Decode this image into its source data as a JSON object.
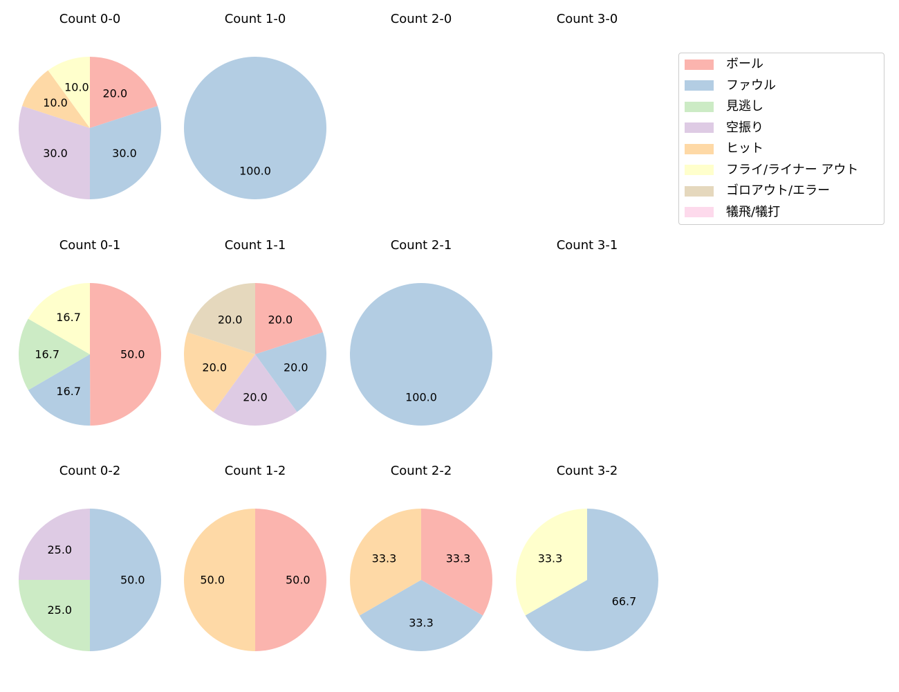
{
  "legend": {
    "items": [
      {
        "label": "ボール",
        "color": "#fbb4ae"
      },
      {
        "label": "ファウル",
        "color": "#b3cde3"
      },
      {
        "label": "見逃し",
        "color": "#ccebc5"
      },
      {
        "label": "空振り",
        "color": "#decbe4"
      },
      {
        "label": "ヒット",
        "color": "#fed9a6"
      },
      {
        "label": "フライ/ライナー アウト",
        "color": "#ffffcc"
      },
      {
        "label": "ゴロアウト/エラー",
        "color": "#e5d8bd"
      },
      {
        "label": "犠飛/犠打",
        "color": "#fddaec"
      }
    ]
  },
  "chart_data": [
    {
      "type": "pie",
      "title": "Count 0-0",
      "categories": [
        "ボール",
        "ファウル",
        "空振り",
        "ヒット",
        "フライ/ライナー アウト"
      ],
      "values": [
        20.0,
        30.0,
        30.0,
        10.0,
        10.0
      ]
    },
    {
      "type": "pie",
      "title": "Count 1-0",
      "categories": [
        "ファウル"
      ],
      "values": [
        100.0
      ]
    },
    {
      "type": "pie",
      "title": "Count 2-0",
      "categories": [],
      "values": []
    },
    {
      "type": "pie",
      "title": "Count 3-0",
      "categories": [],
      "values": []
    },
    {
      "type": "pie",
      "title": "Count 0-1",
      "categories": [
        "ボール",
        "ファウル",
        "見逃し",
        "フライ/ライナー アウト"
      ],
      "values": [
        50.0,
        16.7,
        16.7,
        16.7
      ]
    },
    {
      "type": "pie",
      "title": "Count 1-1",
      "categories": [
        "ボール",
        "ファウル",
        "空振り",
        "ヒット",
        "ゴロアウト/エラー"
      ],
      "values": [
        20.0,
        20.0,
        20.0,
        20.0,
        20.0
      ]
    },
    {
      "type": "pie",
      "title": "Count 2-1",
      "categories": [
        "ファウル"
      ],
      "values": [
        100.0
      ]
    },
    {
      "type": "pie",
      "title": "Count 3-1",
      "categories": [],
      "values": []
    },
    {
      "type": "pie",
      "title": "Count 0-2",
      "categories": [
        "ファウル",
        "見逃し",
        "空振り"
      ],
      "values": [
        50.0,
        25.0,
        25.0
      ]
    },
    {
      "type": "pie",
      "title": "Count 1-2",
      "categories": [
        "ボール",
        "ヒット"
      ],
      "values": [
        50.0,
        50.0
      ]
    },
    {
      "type": "pie",
      "title": "Count 2-2",
      "categories": [
        "ボール",
        "ファウル",
        "ヒット"
      ],
      "values": [
        33.3,
        33.3,
        33.3
      ]
    },
    {
      "type": "pie",
      "title": "Count 3-2",
      "categories": [
        "ファウル",
        "フライ/ライナー アウト"
      ],
      "values": [
        66.7,
        33.3
      ]
    }
  ]
}
